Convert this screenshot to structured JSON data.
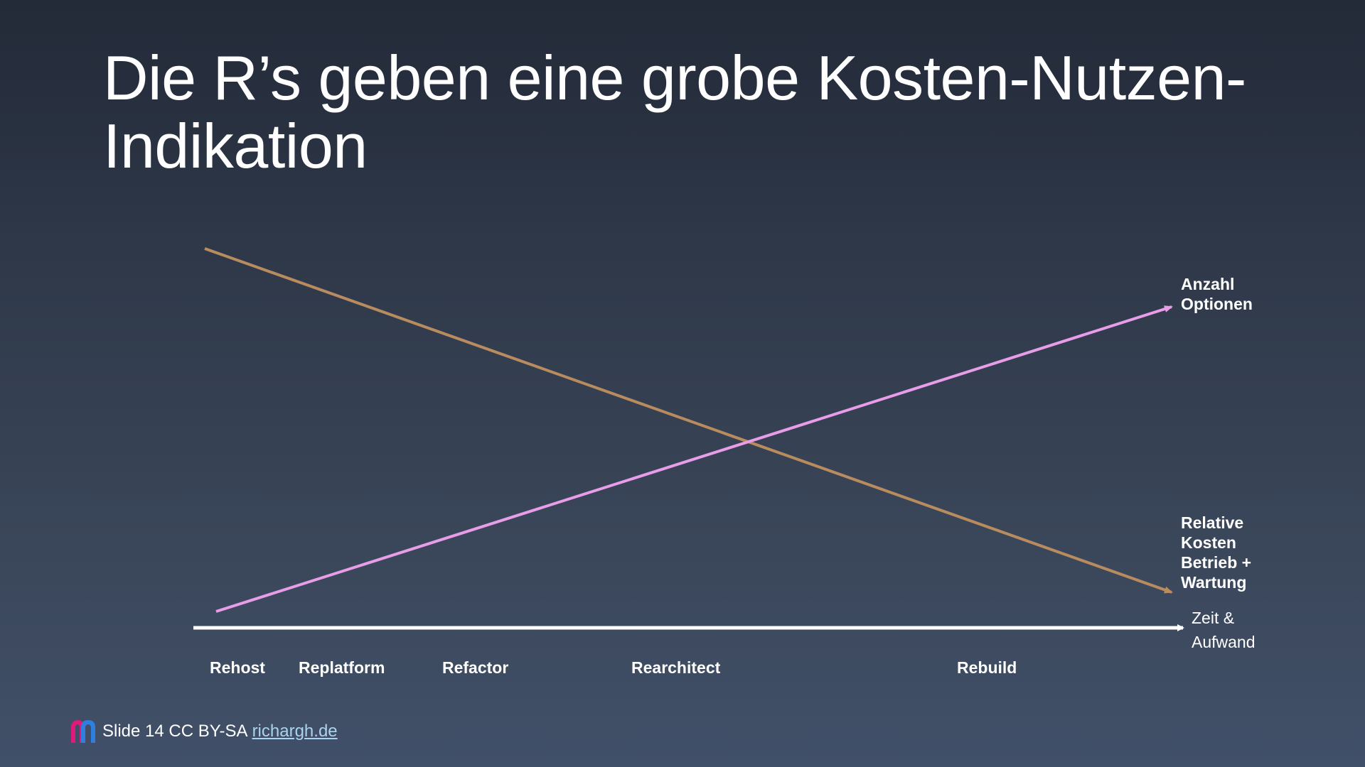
{
  "slide": {
    "title": "Die R’s geben eine grobe Kosten-Nutzen-Indikation"
  },
  "diagram": {
    "x_axis_label_line1": "Zeit &",
    "x_axis_label_line2": "Aufwand",
    "series": [
      {
        "label_lines": [
          "Anzahl",
          "Optionen"
        ],
        "color": "#e89de8",
        "direction": "rising"
      },
      {
        "label_lines": [
          "Relative",
          "Kosten",
          "Betrieb +",
          "Wartung"
        ],
        "color": "#b88c5e",
        "direction": "falling"
      }
    ],
    "axis_color": "#ffffff",
    "stages": [
      "Rehost",
      "Replatform",
      "Refactor",
      "Rearchitect",
      "Rebuild"
    ]
  },
  "footer": {
    "logo_icon": "rh-logo-icon",
    "text": "Slide 14 CC BY-SA",
    "link_text": "richargh.de",
    "link_color": "#a9d3ee"
  }
}
